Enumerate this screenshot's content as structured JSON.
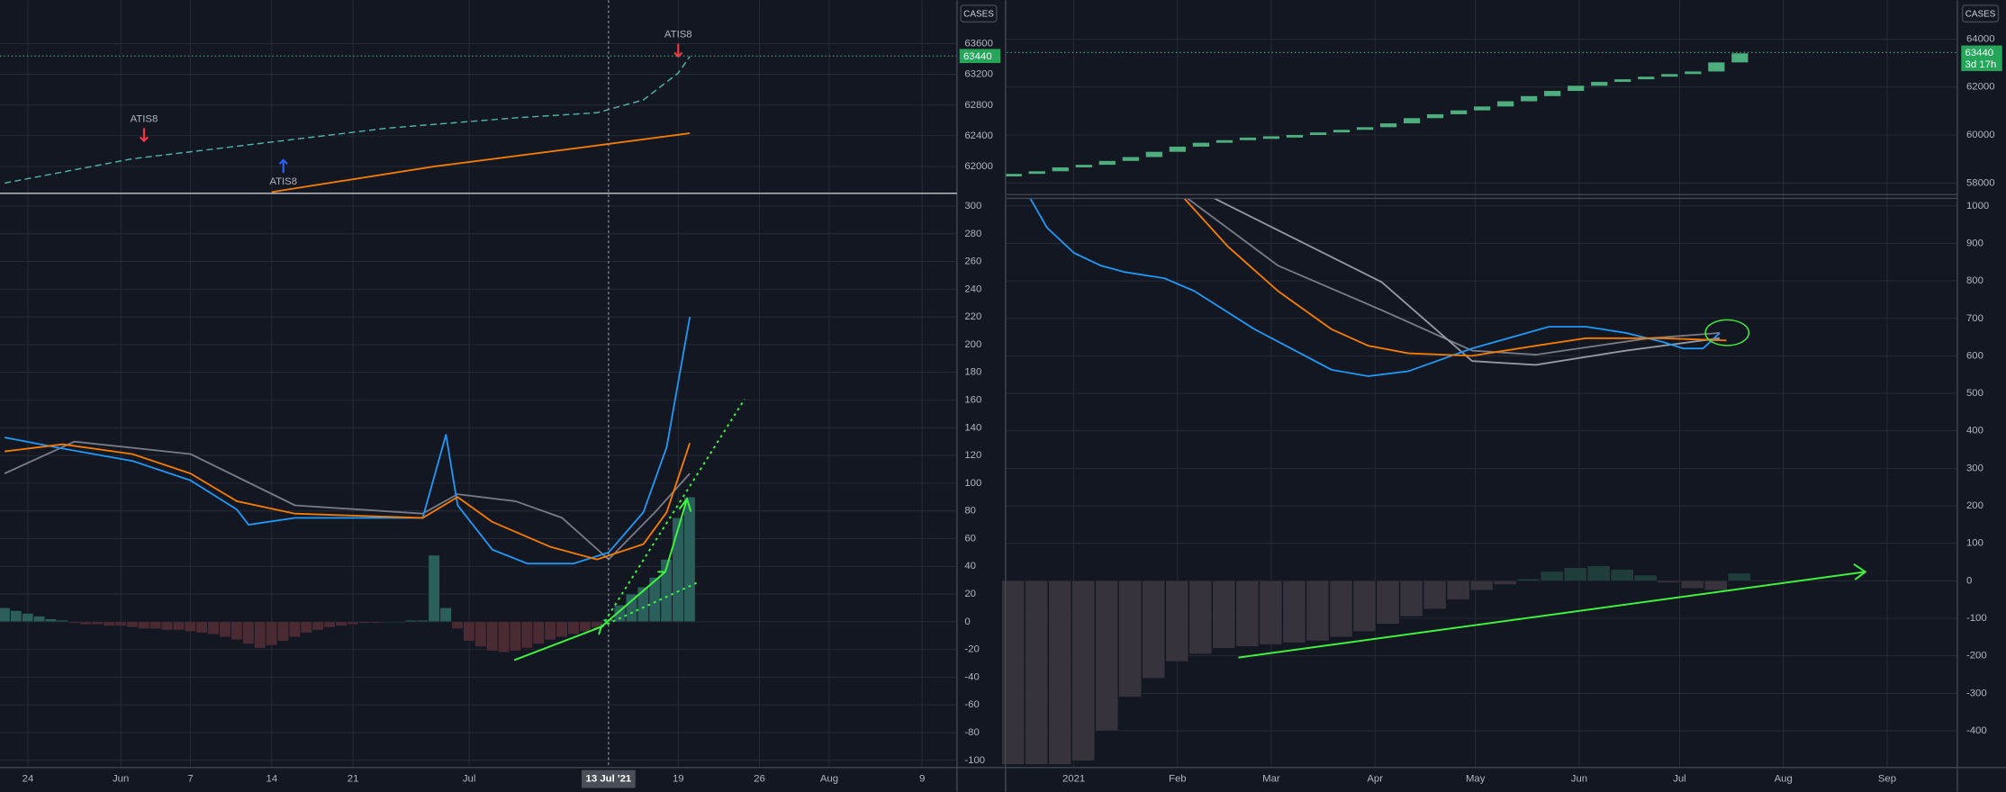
{
  "chart_data": [
    {
      "type": "line",
      "axis_label": "CASES",
      "last_value": 63440,
      "xlim": [
        21.6,
        104
      ],
      "ylim": [
        61667,
        64167
      ],
      "yticks": [
        62000,
        62400,
        62800,
        63200,
        63600
      ],
      "series": [
        {
          "color": "#4db6ac",
          "dashed": true,
          "x": [
            22,
            33,
            44,
            55,
            66,
            73,
            77,
            80,
            81
          ],
          "values": [
            61783,
            62100,
            62300,
            62500,
            62633,
            62700,
            62867,
            63217,
            63433
          ]
        },
        {
          "color": "#f57c00",
          "x": [
            45,
            59,
            71,
            81
          ],
          "values": [
            61667,
            62000,
            62233,
            62433
          ]
        }
      ],
      "annotations": [
        {
          "text": "ATIS8",
          "x": 34,
          "y": 62333,
          "direction": "down",
          "color": "#f23645"
        },
        {
          "text": "ATIS8",
          "x": 46,
          "y": 62083,
          "direction": "up",
          "color": "#2962ff"
        },
        {
          "text": "ATIS8",
          "x": 80,
          "y": 63433,
          "direction": "down",
          "color": "#f23645"
        }
      ]
    },
    {
      "type": "line",
      "xlim": [
        21.6,
        104
      ],
      "ylim": [
        -105.2,
        308.3
      ],
      "yticks": [
        300,
        280,
        260,
        240,
        220,
        200,
        180,
        160,
        140,
        120,
        100,
        80,
        60,
        40,
        20,
        0,
        -20,
        -40,
        -60,
        -80,
        -100
      ],
      "xticks": [
        24,
        {
          "value": 32,
          "label": "Jun"
        },
        {
          "value": 38,
          "label": "7"
        },
        {
          "value": 45,
          "label": "14"
        },
        {
          "value": 52,
          "label": "21"
        },
        {
          "value": 62,
          "label": "Jul"
        },
        {
          "value": 80,
          "label": "19"
        },
        {
          "value": 87,
          "label": "26"
        },
        {
          "value": 93,
          "label": "Aug"
        },
        {
          "value": 101,
          "label": "9"
        }
      ],
      "crosshair": {
        "value": 74,
        "label": "13 Jul '21"
      },
      "histogram": {
        "positive_color": "#2a5f5c",
        "negative_color": "#4a2a33",
        "x": [
          22,
          23,
          24,
          25,
          26,
          27,
          28,
          29,
          30,
          31,
          32,
          33,
          34,
          35,
          36,
          37,
          38,
          39,
          40,
          41,
          42,
          43,
          44,
          45,
          46,
          47,
          48,
          49,
          50,
          51,
          52,
          53,
          54,
          55,
          56,
          57,
          58,
          59,
          60,
          61,
          62,
          63,
          64,
          65,
          66,
          67,
          68,
          69,
          70,
          71,
          72,
          73,
          74,
          75,
          76,
          77,
          78,
          79,
          80,
          81
        ],
        "values": [
          10,
          8,
          6,
          4,
          2,
          1,
          -1,
          -2,
          -2,
          -3,
          -3,
          -4,
          -5,
          -5,
          -6,
          -6,
          -7,
          -8,
          -9,
          -11,
          -13,
          -16,
          -19,
          -17,
          -14,
          -11,
          -8,
          -6,
          -4,
          -3,
          -2,
          -1,
          -1,
          0,
          0,
          1,
          1,
          48,
          10,
          -5,
          -14,
          -18,
          -21,
          -22,
          -21,
          -19,
          -16,
          -13,
          -11,
          -9,
          -7,
          -4,
          2,
          12,
          20,
          25,
          32,
          45,
          75,
          90
        ]
      },
      "series": [
        {
          "color": "#787b86",
          "x": [
            22,
            28,
            38,
            47,
            58,
            61,
            66,
            70,
            74,
            78,
            81
          ],
          "values": [
            107,
            130,
            121,
            84,
            78,
            92,
            87,
            75,
            45,
            79,
            107
          ]
        },
        {
          "color": "#2196f3",
          "x": [
            22,
            27,
            33,
            38,
            42,
            43,
            47,
            52,
            58,
            60,
            61,
            64,
            67,
            71,
            74,
            77,
            79,
            81
          ],
          "values": [
            133,
            125,
            116,
            102,
            81,
            70,
            75,
            75,
            75,
            135,
            84,
            52,
            42,
            42,
            50,
            79,
            126,
            220
          ]
        },
        {
          "color": "#f57c00",
          "x": [
            22,
            27,
            33,
            38,
            42,
            47,
            58,
            61,
            64,
            69,
            73,
            77,
            79,
            81
          ],
          "values": [
            123,
            128,
            121,
            107,
            87,
            78,
            75,
            90,
            72,
            54,
            45,
            56,
            79,
            129
          ]
        }
      ]
    },
    {
      "type": "bar",
      "axis_label": "CASES",
      "last_value": 63440,
      "countdown": "3d 17h",
      "color": "#4caf7d",
      "xlim": [
        -20,
        264
      ],
      "ylim": [
        57568,
        65622
      ],
      "yticks": [
        58000,
        60000,
        62000,
        64000
      ],
      "x": [
        -18,
        -11,
        -4,
        3,
        10,
        17,
        24,
        31,
        38,
        45,
        52,
        59,
        66,
        73,
        80,
        87,
        94,
        101,
        108,
        115,
        122,
        129,
        136,
        143,
        150,
        157,
        164,
        171,
        178,
        185,
        192,
        199
      ],
      "values": [
        58379,
        58487,
        58649,
        58757,
        58919,
        59081,
        59298,
        59514,
        59676,
        59784,
        59892,
        59946,
        60000,
        60108,
        60216,
        60325,
        60487,
        60703,
        60865,
        61027,
        61189,
        61406,
        61622,
        61838,
        62054,
        62216,
        62324,
        62432,
        62541,
        62649,
        63027,
        63405
      ]
    },
    {
      "type": "line",
      "xlim": [
        -20,
        264
      ],
      "ylim": [
        -498,
        1020
      ],
      "yticks": [
        1000,
        900,
        800,
        700,
        600,
        500,
        400,
        300,
        200,
        100,
        0,
        -100,
        -200,
        -300,
        -400
      ],
      "xticks": [
        {
          "value": 0,
          "label": "2021"
        },
        {
          "value": 31,
          "label": "Feb"
        },
        {
          "value": 59,
          "label": "Mar"
        },
        {
          "value": 90,
          "label": "Apr"
        },
        {
          "value": 120,
          "label": "May"
        },
        {
          "value": 151,
          "label": "Jun"
        },
        {
          "value": 181,
          "label": "Jul"
        },
        {
          "value": 212,
          "label": "Aug"
        },
        {
          "value": 243,
          "label": "Sep"
        }
      ],
      "histogram": {
        "positive_color": "#1f3d3b",
        "negative_color": "#37333d",
        "x": [
          -18,
          -11,
          -4,
          3,
          10,
          17,
          24,
          31,
          38,
          45,
          52,
          59,
          66,
          73,
          80,
          87,
          94,
          101,
          108,
          115,
          122,
          129,
          136,
          143,
          150,
          157,
          164,
          171,
          178,
          185,
          192,
          199
        ],
        "values": [
          -490,
          -490,
          -490,
          -480,
          -400,
          -310,
          -260,
          -215,
          -195,
          -180,
          -175,
          -170,
          -165,
          -160,
          -150,
          -135,
          -115,
          -95,
          -75,
          -50,
          -25,
          -10,
          5,
          25,
          35,
          40,
          30,
          15,
          -5,
          -20,
          -25,
          20
        ]
      },
      "series": [
        {
          "color": "#787b86",
          "x": [
            34,
            61,
            92,
            119,
            138,
            172,
            193
          ],
          "values": [
            1020,
            841,
            722,
            614,
            603,
            647,
            661
          ]
        },
        {
          "color": "#9598a1",
          "x": [
            42,
            92,
            119,
            138,
            165,
            193
          ],
          "values": [
            1020,
            797,
            586,
            576,
            614,
            647
          ]
        },
        {
          "color": "#2196f3",
          "x": [
            -13,
            -8,
            0,
            8,
            15,
            27,
            36,
            54,
            77,
            88,
            100,
            119,
            142,
            153,
            165,
            176,
            182,
            188,
            193
          ],
          "values": [
            1020,
            942,
            875,
            841,
            824,
            807,
            773,
            671,
            563,
            546,
            559,
            620,
            678,
            678,
            661,
            637,
            620,
            620,
            661
          ]
        },
        {
          "color": "#f57c00",
          "x": [
            33,
            46,
            61,
            77,
            88,
            100,
            119,
            138,
            153,
            176,
            195
          ],
          "values": [
            1020,
            892,
            773,
            671,
            627,
            607,
            600,
            627,
            647,
            647,
            641
          ]
        }
      ]
    }
  ]
}
